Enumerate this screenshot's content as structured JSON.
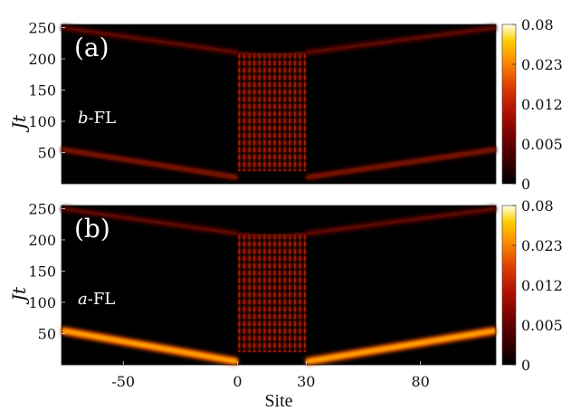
{
  "chart_data": [
    {
      "type": "heatmap",
      "panel_label": "(a)",
      "annotation": {
        "italic": "b",
        "rest": "-FL"
      },
      "ylabel": "Jt",
      "xlabel": "",
      "xlim": [
        -77,
        113
      ],
      "ylim": [
        0,
        255
      ],
      "yticks": [
        50,
        100,
        150,
        200,
        250
      ],
      "xticks": [],
      "sites_range": [
        0,
        30
      ],
      "wavefronts": [
        {
          "from": [
            -77,
            55
          ],
          "to": [
            0,
            10
          ],
          "peak": 0.005
        },
        {
          "from": [
            30,
            10
          ],
          "to": [
            113,
            55
          ],
          "peak": 0.005
        },
        {
          "from": [
            -77,
            250
          ],
          "to": [
            0,
            210
          ],
          "peak": 0.004
        },
        {
          "from": [
            30,
            210
          ],
          "to": [
            113,
            250
          ],
          "peak": 0.004
        }
      ],
      "colorbar": {
        "ticks": [
          "0.08",
          "0.023",
          "0.012",
          "0.005",
          "0"
        ]
      }
    },
    {
      "type": "heatmap",
      "panel_label": "(b)",
      "annotation": {
        "italic": "a",
        "rest": "-FL"
      },
      "ylabel": "Jt",
      "xlabel": "Site",
      "xlim": [
        -77,
        113
      ],
      "ylim": [
        0,
        255
      ],
      "yticks": [
        50,
        100,
        150,
        200,
        250
      ],
      "xticks": [
        "-50",
        "0",
        "30",
        "80"
      ],
      "sites_range": [
        0,
        30
      ],
      "wavefronts": [
        {
          "from": [
            -77,
            55
          ],
          "to": [
            0,
            5
          ],
          "peak": 0.03
        },
        {
          "from": [
            30,
            5
          ],
          "to": [
            113,
            55
          ],
          "peak": 0.03
        },
        {
          "from": [
            -77,
            250
          ],
          "to": [
            0,
            210
          ],
          "peak": 0.004
        },
        {
          "from": [
            30,
            210
          ],
          "to": [
            113,
            250
          ],
          "peak": 0.004
        }
      ],
      "colorbar": {
        "ticks": [
          "0.08",
          "0.023",
          "0.012",
          "0.005",
          "0"
        ]
      }
    }
  ]
}
